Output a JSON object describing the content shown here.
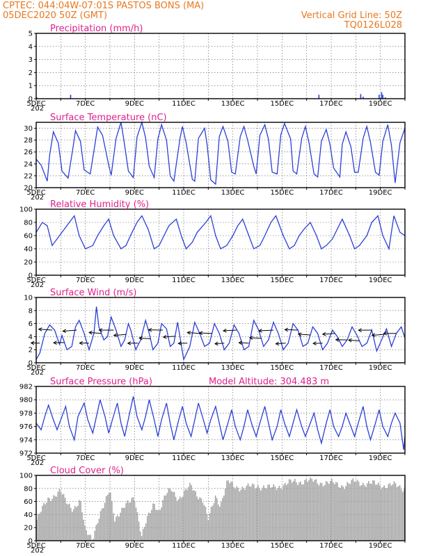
{
  "header": {
    "line1": "CPTEC:   044:04W-07:01S   PASTOS BONS (MA)",
    "date": "05DEC2020 50Z (GMT)",
    "vgrid_label": "Vertical Grid Line: 50Z",
    "code": "TQ0126L028"
  },
  "x_axis": {
    "days": 15,
    "ticks": [
      {
        "label": "5DEC",
        "day": 0
      },
      {
        "label": "7DEC",
        "day": 2
      },
      {
        "label": "9DEC",
        "day": 4
      },
      {
        "label": "11DEC",
        "day": 6
      },
      {
        "label": "13DEC",
        "day": 8
      },
      {
        "label": "15DEC",
        "day": 10
      },
      {
        "label": "17DEC",
        "day": 12
      },
      {
        "label": "19DEC",
        "day": 14
      }
    ],
    "year_stub": "202"
  },
  "chart_data": [
    {
      "id": "precip",
      "type": "bar",
      "title": "Precipitation (mm/h)",
      "ylim": [
        0,
        5
      ],
      "yticks": [
        "0",
        "1",
        "2",
        "3",
        "4",
        "5"
      ],
      "events": [
        {
          "day": 0.02,
          "v": 0.12
        },
        {
          "day": 1.4,
          "v": 0.3
        },
        {
          "day": 3.5,
          "v": 0.06
        },
        {
          "day": 8.9,
          "v": 0.05
        },
        {
          "day": 11.5,
          "v": 0.3
        },
        {
          "day": 13.2,
          "v": 0.35
        },
        {
          "day": 13.3,
          "v": 0.15
        },
        {
          "day": 13.95,
          "v": 0.3
        },
        {
          "day": 14.05,
          "v": 0.5
        },
        {
          "day": 14.1,
          "v": 0.3
        },
        {
          "day": 14.2,
          "v": 0.1
        }
      ]
    },
    {
      "id": "temp",
      "type": "line",
      "title": "Surface Temperature (nC)",
      "ylim": [
        20,
        31
      ],
      "yticks": [
        "20",
        "22",
        "24",
        "26",
        "28",
        "30"
      ],
      "x": [
        0,
        0.2,
        0.45,
        0.55,
        0.7,
        0.9,
        1.05,
        1.3,
        1.5,
        1.6,
        1.8,
        1.95,
        2.2,
        2.4,
        2.5,
        2.7,
        2.95,
        3.05,
        3.25,
        3.45,
        3.55,
        3.75,
        3.95,
        4.1,
        4.3,
        4.45,
        4.6,
        4.8,
        4.95,
        5.1,
        5.3,
        5.45,
        5.6,
        5.85,
        5.95,
        6.1,
        6.35,
        6.45,
        6.6,
        6.85,
        6.95,
        7.1,
        7.3,
        7.45,
        7.6,
        7.8,
        7.95,
        8.1,
        8.3,
        8.45,
        8.6,
        8.85,
        8.95,
        9.1,
        9.3,
        9.45,
        9.6,
        9.8,
        9.95,
        10.1,
        10.35,
        10.45,
        10.6,
        10.8,
        10.95,
        11.1,
        11.3,
        11.45,
        11.6,
        11.8,
        11.95,
        12.1,
        12.35,
        12.45,
        12.6,
        12.8,
        12.95,
        13.1,
        13.3,
        13.45,
        13.6,
        13.8,
        13.95,
        14.1,
        14.3,
        14.45,
        14.6,
        14.8,
        15
      ],
      "values": [
        24.8,
        23.8,
        21.1,
        25.5,
        29.4,
        27.5,
        22.8,
        21.6,
        26.8,
        29.6,
        27.8,
        23.0,
        22.3,
        27.5,
        30.2,
        28.8,
        23.8,
        22.1,
        28.3,
        31.0,
        28.5,
        22.8,
        21.7,
        28.5,
        31.0,
        28.4,
        23.6,
        21.7,
        28.2,
        30.6,
        28.0,
        22.0,
        21.1,
        28.3,
        30.3,
        27.6,
        21.4,
        21.1,
        28.3,
        30.0,
        27.3,
        21.3,
        20.6,
        28.6,
        30.3,
        27.8,
        22.6,
        22.3,
        28.6,
        30.3,
        28.0,
        23.6,
        22.3,
        28.8,
        30.6,
        28.1,
        22.6,
        22.3,
        28.9,
        30.8,
        28.2,
        22.8,
        22.3,
        28.3,
        30.3,
        27.5,
        22.3,
        21.8,
        27.8,
        29.8,
        27.3,
        23.3,
        21.8,
        27.3,
        29.4,
        26.9,
        22.6,
        22.6,
        28.3,
        30.3,
        27.6,
        22.6,
        22.1,
        27.8,
        30.6,
        27.1,
        20.8,
        27.6,
        30.0
      ]
    },
    {
      "id": "rh",
      "type": "line",
      "title": "Relative Humidity (%)",
      "ylim": [
        0,
        100
      ],
      "yticks": [
        "0",
        "20",
        "40",
        "60",
        "80",
        "100"
      ],
      "x": [
        0,
        0.25,
        0.45,
        0.65,
        0.85,
        1.15,
        1.35,
        1.55,
        1.75,
        2.0,
        2.3,
        2.5,
        2.75,
        2.95,
        3.15,
        3.45,
        3.65,
        3.9,
        4.1,
        4.3,
        4.55,
        4.8,
        5.0,
        5.2,
        5.4,
        5.7,
        5.9,
        6.1,
        6.35,
        6.55,
        6.9,
        7.1,
        7.3,
        7.5,
        7.75,
        8.0,
        8.2,
        8.4,
        8.65,
        8.85,
        9.1,
        9.3,
        9.55,
        9.75,
        10.05,
        10.3,
        10.5,
        10.7,
        10.9,
        11.15,
        11.4,
        11.6,
        11.8,
        12.05,
        12.25,
        12.45,
        12.75,
        12.95,
        13.15,
        13.45,
        13.65,
        13.9,
        14.1,
        14.35,
        14.55,
        14.8,
        15
      ],
      "values": [
        65,
        80,
        75,
        45,
        55,
        70,
        80,
        90,
        60,
        40,
        45,
        60,
        75,
        85,
        60,
        40,
        45,
        65,
        80,
        90,
        70,
        40,
        45,
        60,
        75,
        85,
        60,
        40,
        50,
        65,
        80,
        90,
        60,
        40,
        45,
        60,
        75,
        85,
        60,
        40,
        45,
        60,
        80,
        90,
        60,
        40,
        45,
        60,
        70,
        80,
        60,
        40,
        45,
        55,
        70,
        85,
        60,
        40,
        45,
        60,
        80,
        90,
        60,
        40,
        90,
        65,
        60
      ]
    },
    {
      "id": "wind",
      "type": "line",
      "title": "Surface Wind (m/s)",
      "ylim": [
        0,
        10
      ],
      "yticks": [
        "0",
        "2",
        "4",
        "6",
        "8",
        "10"
      ],
      "x": [
        0,
        0.15,
        0.35,
        0.55,
        0.75,
        0.95,
        1.05,
        1.25,
        1.45,
        1.6,
        1.75,
        1.95,
        2.15,
        2.35,
        2.45,
        2.55,
        2.75,
        2.9,
        3.05,
        3.25,
        3.45,
        3.6,
        3.75,
        3.85,
        4.05,
        4.25,
        4.45,
        4.6,
        4.75,
        4.95,
        5.1,
        5.3,
        5.45,
        5.6,
        5.75,
        6.0,
        6.25,
        6.45,
        6.65,
        6.85,
        7.05,
        7.25,
        7.45,
        7.65,
        7.85,
        8.05,
        8.25,
        8.45,
        8.65,
        8.85,
        9.05,
        9.25,
        9.45,
        9.65,
        9.85,
        10.05,
        10.25,
        10.45,
        10.65,
        10.85,
        11.05,
        11.25,
        11.45,
        11.65,
        11.85,
        12.05,
        12.25,
        12.45,
        12.65,
        12.85,
        13.05,
        13.25,
        13.45,
        13.65,
        13.85,
        14.05,
        14.25,
        14.45,
        14.65,
        14.85,
        15
      ],
      "values": [
        0.5,
        1.5,
        4.5,
        5.8,
        5.0,
        2.8,
        4.2,
        2.0,
        2.5,
        5.5,
        6.5,
        4.5,
        2.0,
        4.5,
        8.6,
        5.5,
        3.5,
        4.0,
        7.0,
        5.0,
        2.5,
        3.5,
        6.0,
        5.0,
        2.0,
        3.5,
        6.5,
        4.5,
        2.0,
        3.0,
        6.0,
        5.2,
        2.5,
        3.0,
        6.2,
        0.5,
        2.5,
        6.2,
        4.5,
        2.5,
        3.0,
        6.0,
        4.5,
        2.0,
        3.0,
        5.8,
        4.5,
        2.0,
        2.5,
        6.5,
        5.0,
        2.5,
        3.5,
        6.2,
        4.5,
        2.0,
        3.0,
        6.0,
        5.0,
        2.5,
        3.0,
        5.5,
        4.5,
        2.0,
        3.0,
        5.0,
        4.0,
        2.5,
        3.5,
        5.5,
        4.2,
        2.5,
        3.0,
        5.0,
        1.8,
        3.5,
        5.2,
        2.5,
        4.5,
        5.5,
        3.8
      ]
    },
    {
      "id": "pressure",
      "type": "line",
      "title": "Surface Pressure (hPa)",
      "subtitle": "Model Altitude: 304.483 m",
      "ylim": [
        972,
        982
      ],
      "yticks": [
        "972",
        "974",
        "976",
        "978",
        "980",
        "982"
      ],
      "x": [
        0,
        0.2,
        0.35,
        0.5,
        0.7,
        0.85,
        1.05,
        1.2,
        1.35,
        1.55,
        1.7,
        1.95,
        2.1,
        2.3,
        2.45,
        2.6,
        2.8,
        2.95,
        3.1,
        3.3,
        3.45,
        3.6,
        3.8,
        3.95,
        4.1,
        4.3,
        4.45,
        4.6,
        4.8,
        4.95,
        5.1,
        5.3,
        5.45,
        5.6,
        5.8,
        5.95,
        6.1,
        6.3,
        6.45,
        6.6,
        6.8,
        6.95,
        7.1,
        7.3,
        7.45,
        7.6,
        7.8,
        7.95,
        8.1,
        8.3,
        8.45,
        8.6,
        8.8,
        8.95,
        9.1,
        9.3,
        9.45,
        9.6,
        9.8,
        9.95,
        10.1,
        10.3,
        10.45,
        10.6,
        10.8,
        10.95,
        11.1,
        11.3,
        11.45,
        11.6,
        11.8,
        11.95,
        12.1,
        12.3,
        12.45,
        12.6,
        12.8,
        12.95,
        13.1,
        13.3,
        13.45,
        13.6,
        13.8,
        13.95,
        14.1,
        14.3,
        14.45,
        14.6,
        14.8,
        14.95,
        15
      ],
      "values": [
        976.5,
        975.5,
        977.5,
        979.2,
        977.0,
        975.5,
        977.5,
        979.0,
        976.0,
        974.0,
        977.5,
        979.5,
        977.0,
        975.0,
        977.5,
        980.0,
        977.5,
        975.0,
        977.0,
        979.5,
        976.5,
        974.5,
        978.0,
        980.5,
        977.5,
        975.5,
        977.5,
        980.0,
        977.0,
        974.5,
        977.0,
        979.5,
        976.5,
        974.0,
        977.0,
        979.0,
        976.5,
        974.5,
        977.0,
        979.5,
        977.0,
        975.0,
        977.0,
        979.0,
        976.5,
        974.0,
        976.5,
        978.5,
        976.0,
        974.0,
        976.0,
        978.5,
        976.0,
        974.5,
        976.5,
        979.0,
        976.5,
        974.0,
        976.0,
        978.5,
        976.5,
        974.5,
        976.5,
        978.5,
        976.0,
        974.5,
        976.0,
        978.0,
        975.5,
        973.5,
        976.5,
        978.5,
        976.0,
        974.5,
        976.0,
        978.0,
        976.0,
        974.5,
        976.5,
        979.0,
        976.0,
        974.0,
        976.5,
        978.5,
        976.0,
        974.5,
        976.5,
        978.0,
        976.5,
        972.5,
        974.5
      ]
    },
    {
      "id": "cloud",
      "type": "bar",
      "title": "Cloud Cover (%)",
      "ylim": [
        0,
        100
      ],
      "yticks": [
        "0",
        "20",
        "40",
        "60",
        "80",
        "100"
      ],
      "x": [
        0,
        0.5,
        1,
        1.2,
        1.5,
        1.8,
        2.0,
        2.3,
        2.5,
        2.8,
        3.0,
        3.2,
        3.5,
        3.8,
        4.0,
        4.3,
        4.5,
        4.8,
        5.0,
        5.3,
        5.5,
        5.8,
        6.0,
        6.3,
        6.5,
        6.8,
        7.0,
        7.3,
        7.5,
        7.8,
        8.0,
        8.5,
        9.0,
        9.5,
        10.0,
        10.5,
        11.0,
        11.5,
        12.0,
        12.5,
        13.0,
        13.5,
        14.0,
        14.5,
        15
      ],
      "values": [
        30,
        65,
        75,
        60,
        50,
        60,
        15,
        5,
        30,
        55,
        80,
        35,
        45,
        60,
        70,
        5,
        30,
        60,
        45,
        70,
        80,
        65,
        70,
        85,
        75,
        60,
        30,
        70,
        55,
        90,
        85,
        80,
        85,
        80,
        85,
        90,
        92,
        90,
        88,
        85,
        90,
        88,
        85,
        85,
        80
      ]
    }
  ]
}
